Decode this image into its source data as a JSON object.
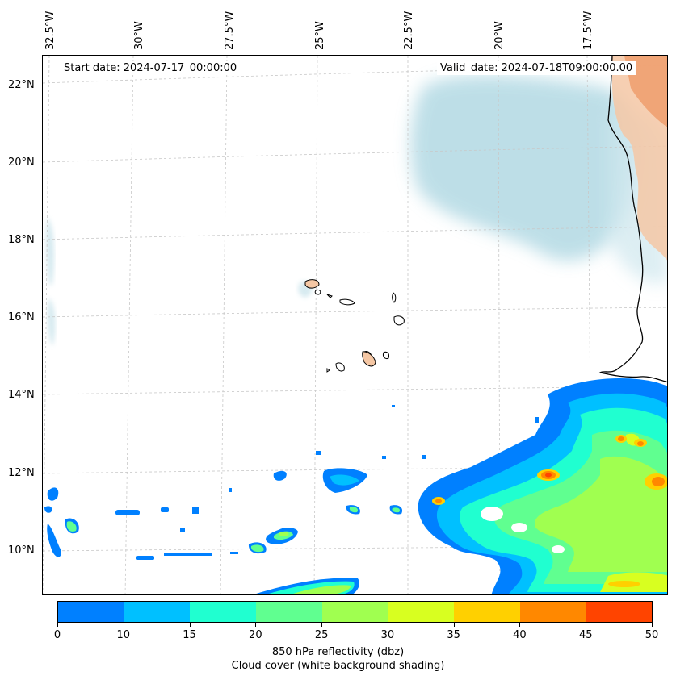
{
  "map": {
    "start_date": "Start date: 2024-07-17_00:00:00",
    "valid_date": "Valid_date: 2024-07-18T09:00:00.00",
    "longitude_labels": [
      "32.5°W",
      "30°W",
      "27.5°W",
      "25°W",
      "22.5°W",
      "20°W",
      "17.5°W"
    ],
    "latitude_labels": [
      "22°N",
      "20°N",
      "18°N",
      "16°N",
      "14°N",
      "12°N",
      "10°N"
    ],
    "gridlines": "dashed",
    "land_fill_color": "#f0a070",
    "cloud_cover_color": "#a8d4e0",
    "coastline_color": "#000000"
  },
  "colorbar": {
    "levels": [
      0,
      10,
      15,
      20,
      25,
      30,
      35,
      40,
      45,
      50
    ],
    "tick_labels": [
      "0",
      "10",
      "15",
      "20",
      "25",
      "30",
      "35",
      "40",
      "45",
      "50"
    ],
    "colors": [
      "#0080ff",
      "#00c0ff",
      "#20ffd0",
      "#60ff90",
      "#a0ff50",
      "#d8ff20",
      "#ffd000",
      "#ff8800",
      "#ff4400"
    ],
    "label": "850 hPa reflectivity (dbz)",
    "sublabel": "Cloud cover (white background shading)"
  }
}
